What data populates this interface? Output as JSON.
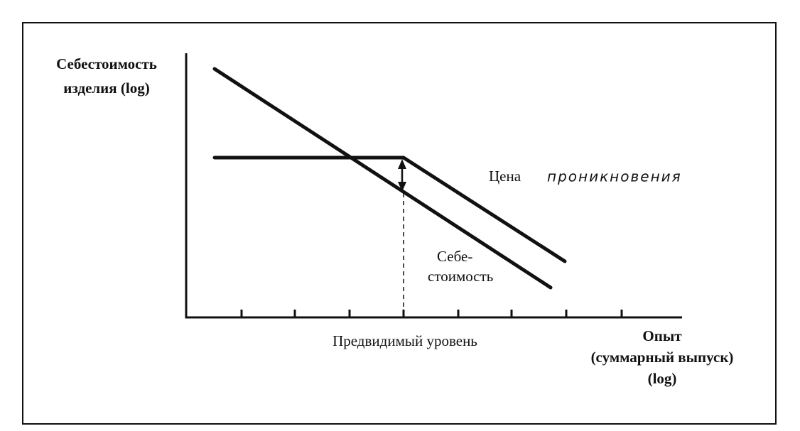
{
  "y_axis_label": [
    "Себестоимость",
    "изделия (log)"
  ],
  "price_label": [
    "Цена",
    "проникновения"
  ],
  "cost_label": [
    "Себе-",
    "стоимость"
  ],
  "marker_label": "Предвидимый уровень",
  "x_axis_label": [
    "Опыт",
    "(суммарный выпуск)",
    "(log)"
  ]
}
